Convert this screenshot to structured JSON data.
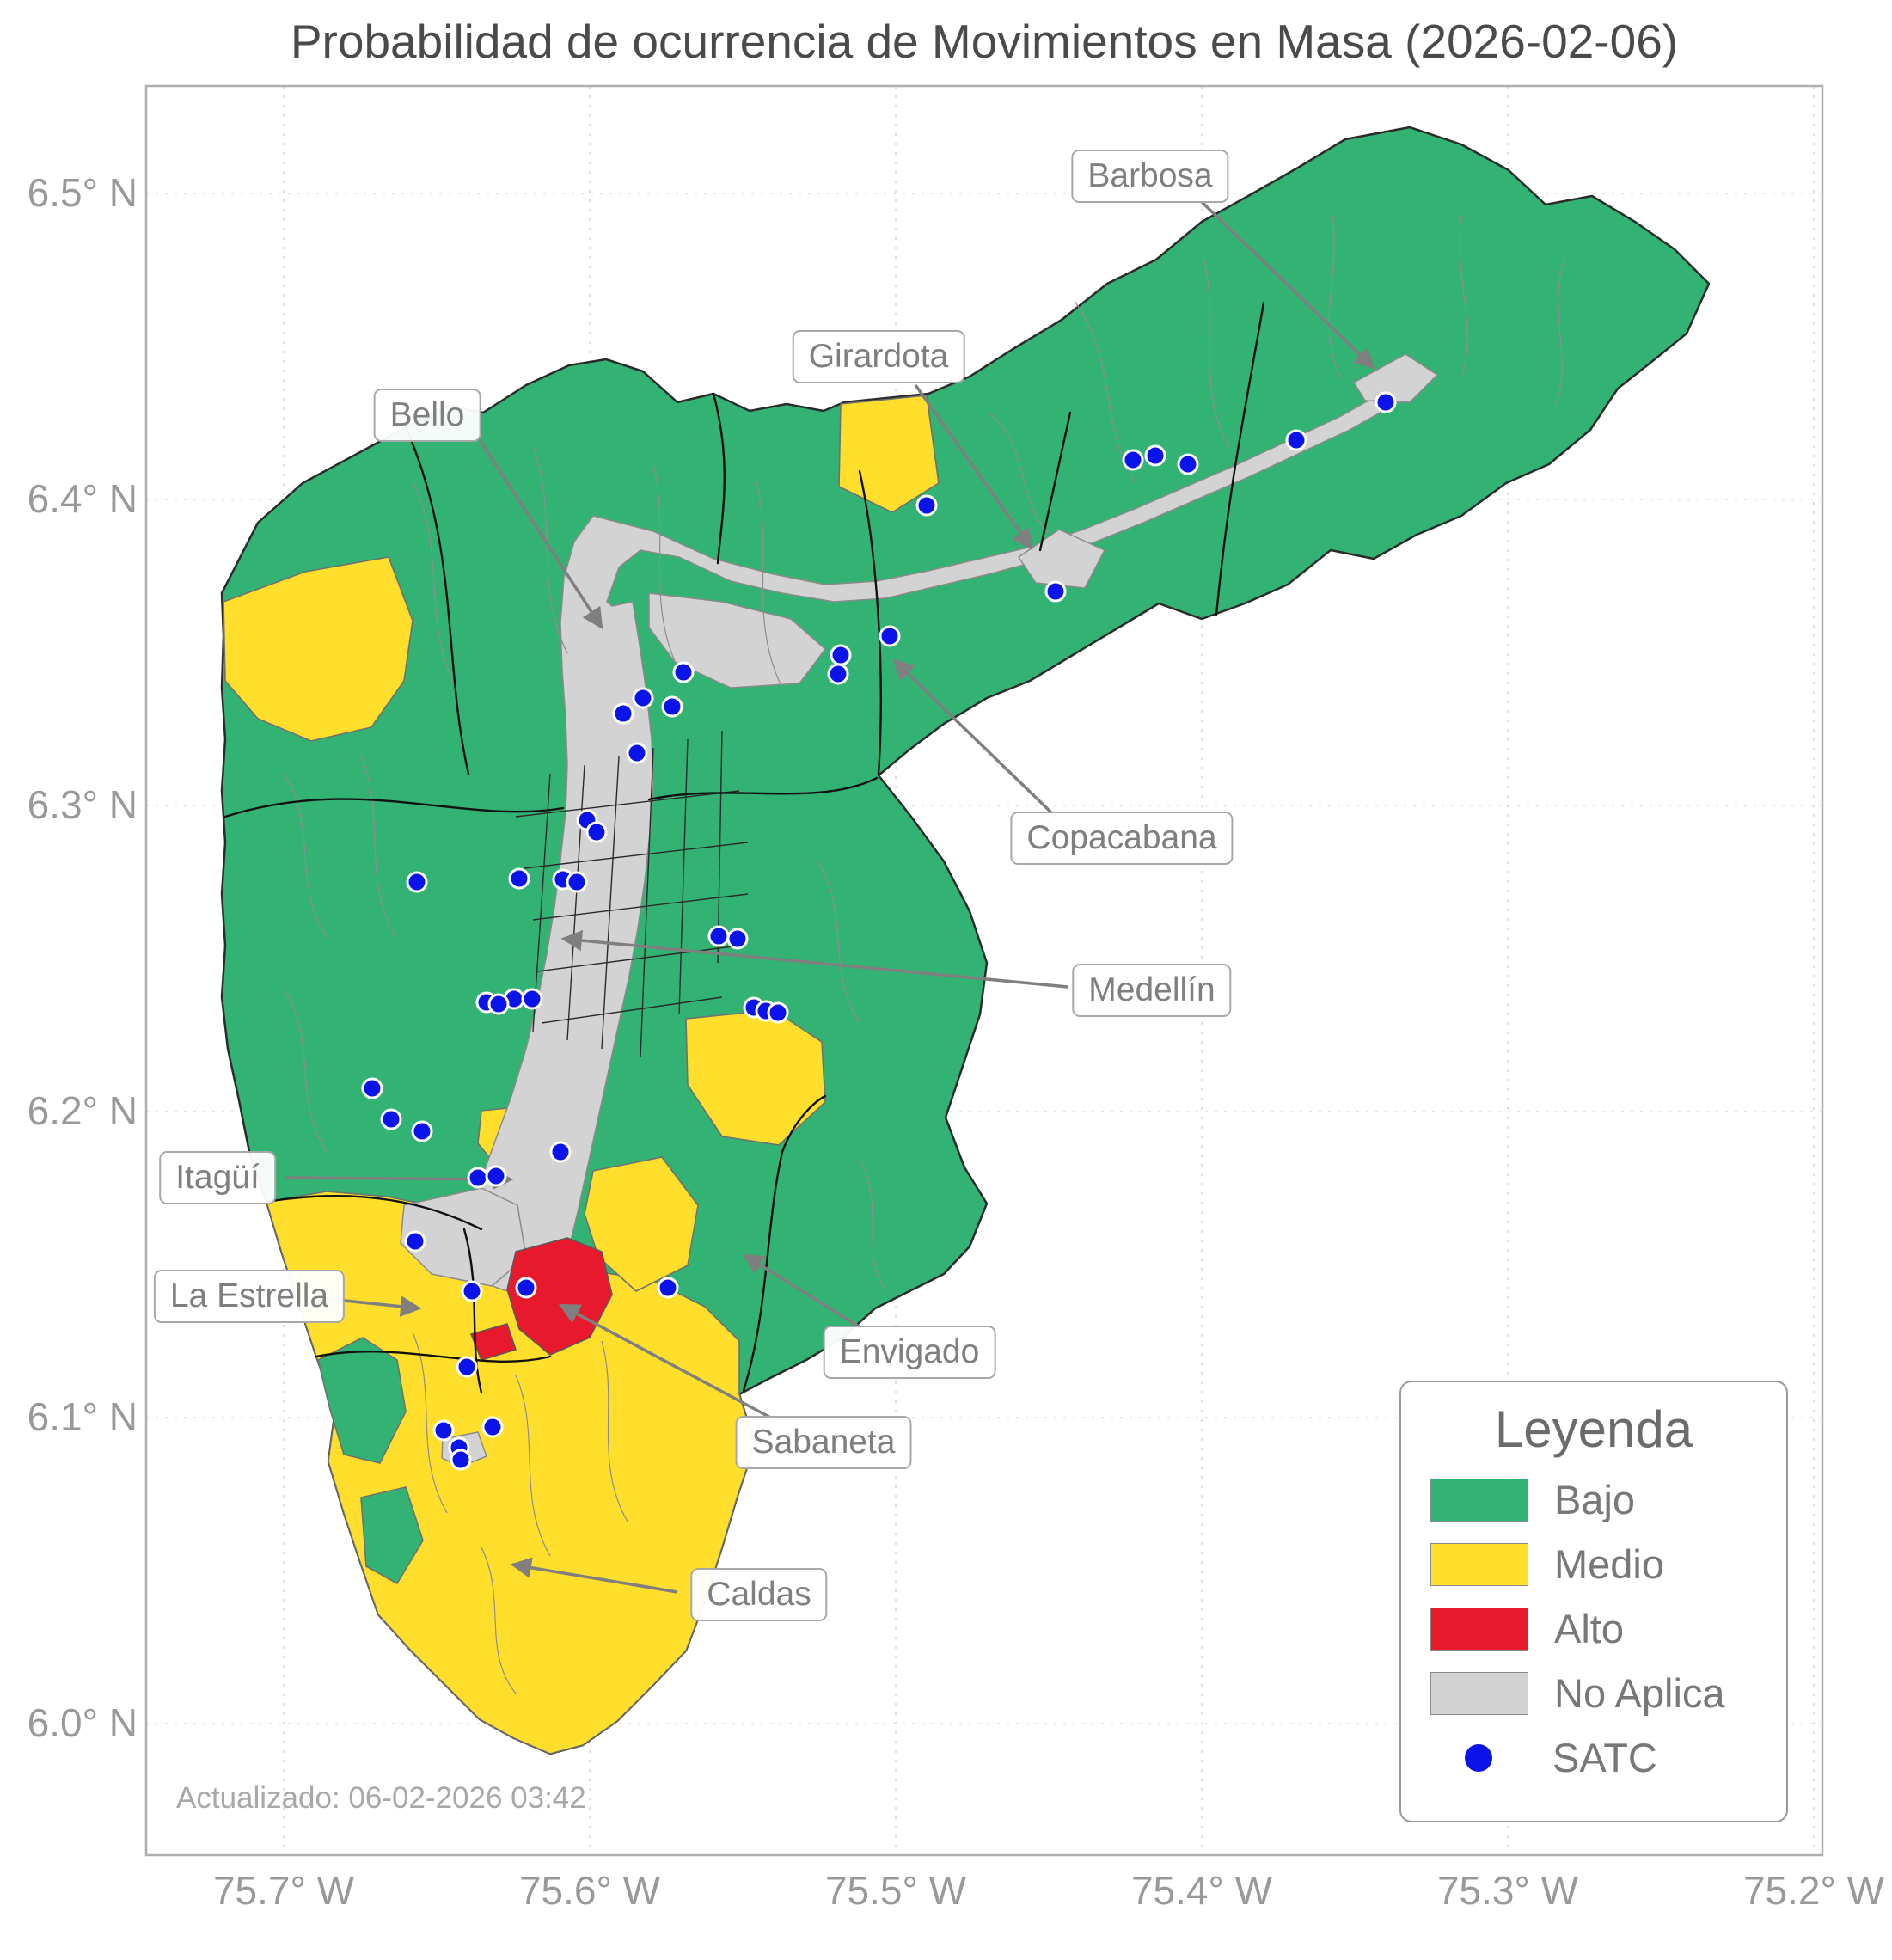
{
  "title": "Probabilidad de ocurrencia de Movimientos en Masa (2026-02-06)",
  "updated_text": "Actualizado: 06-02-2026 03:42",
  "axes": {
    "x_ticks": [
      "75.7° W",
      "75.6° W",
      "75.5° W",
      "75.4° W",
      "75.3° W",
      "75.2° W"
    ],
    "y_ticks": [
      "6.5° N",
      "6.4° N",
      "6.3° N",
      "6.2° N",
      "6.1° N",
      "6.0° N"
    ]
  },
  "legend": {
    "title": "Leyenda",
    "items": [
      {
        "label": "Bajo",
        "color": "#33b373",
        "type": "swatch"
      },
      {
        "label": "Medio",
        "color": "#ffdf2b",
        "type": "swatch"
      },
      {
        "label": "Alto",
        "color": "#e8192c",
        "type": "swatch"
      },
      {
        "label": "No Aplica",
        "color": "#d3d3d3",
        "type": "swatch"
      },
      {
        "label": "SATC",
        "color": "#0b14e8",
        "type": "dot"
      }
    ]
  },
  "annotations": [
    {
      "label": "Barbosa"
    },
    {
      "label": "Girardota"
    },
    {
      "label": "Bello"
    },
    {
      "label": "Copacabana"
    },
    {
      "label": "Medellín"
    },
    {
      "label": "Itagüí"
    },
    {
      "label": "La Estrella"
    },
    {
      "label": "Envigado"
    },
    {
      "label": "Sabaneta"
    },
    {
      "label": "Caldas"
    }
  ],
  "colors": {
    "bajo": "#33b373",
    "medio": "#ffdf2b",
    "alto": "#e8192c",
    "noaplica": "#d3d3d3",
    "satc": "#0b14e8"
  },
  "satc_points": [
    [
      1612,
      468
    ],
    [
      1508,
      512
    ],
    [
      1382,
      540
    ],
    [
      1344,
      530
    ],
    [
      1318,
      535
    ],
    [
      1078,
      588
    ],
    [
      1228,
      688
    ],
    [
      1035,
      740
    ],
    [
      978,
      762
    ],
    [
      975,
      784
    ],
    [
      795,
      782
    ],
    [
      748,
      812
    ],
    [
      782,
      822
    ],
    [
      725,
      830
    ],
    [
      741,
      876
    ],
    [
      683,
      954
    ],
    [
      694,
      968
    ],
    [
      604,
      1022
    ],
    [
      655,
      1023
    ],
    [
      671,
      1026
    ],
    [
      485,
      1026
    ],
    [
      836,
      1089
    ],
    [
      858,
      1092
    ],
    [
      598,
      1162
    ],
    [
      566,
      1166
    ],
    [
      580,
      1168
    ],
    [
      619,
      1162
    ],
    [
      877,
      1172
    ],
    [
      891,
      1176
    ],
    [
      905,
      1178
    ],
    [
      433,
      1266
    ],
    [
      455,
      1302
    ],
    [
      491,
      1316
    ],
    [
      652,
      1340
    ],
    [
      556,
      1370
    ],
    [
      577,
      1368
    ],
    [
      483,
      1444
    ],
    [
      549,
      1502
    ],
    [
      612,
      1498
    ],
    [
      777,
      1498
    ],
    [
      543,
      1590
    ],
    [
      516,
      1664
    ],
    [
      573,
      1660
    ],
    [
      534,
      1684
    ],
    [
      536,
      1698
    ]
  ]
}
